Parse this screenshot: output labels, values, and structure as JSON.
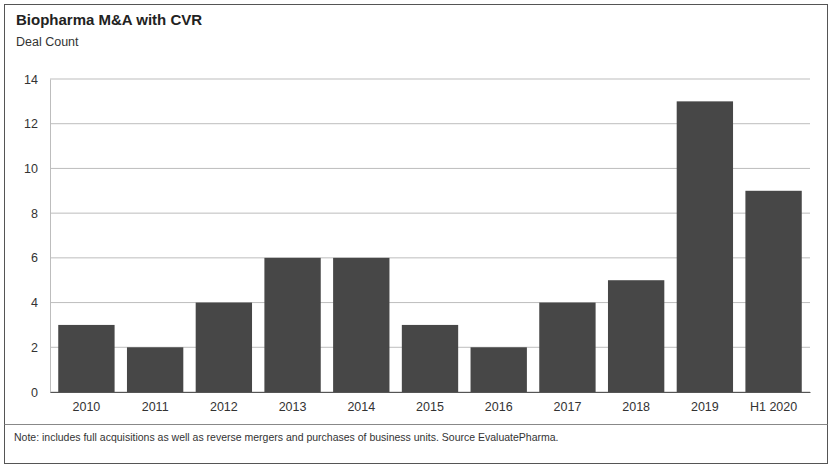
{
  "chart_data": {
    "type": "bar",
    "title": "Biopharma M&A with CVR",
    "subtitle": "Deal Count",
    "categories": [
      "2010",
      "2011",
      "2012",
      "2013",
      "2014",
      "2015",
      "2016",
      "2017",
      "2018",
      "2019",
      "H1 2020"
    ],
    "values": [
      3,
      2,
      4,
      6,
      6,
      3,
      2,
      4,
      5,
      13,
      9
    ],
    "color": "#474747",
    "ylim": [
      0,
      14
    ],
    "yticks": [
      0,
      2,
      4,
      6,
      8,
      10,
      12,
      14
    ],
    "grid": true,
    "note": "Note: includes full acquisitions as well as reverse mergers and purchases of business units. Source EvaluatePharma."
  }
}
